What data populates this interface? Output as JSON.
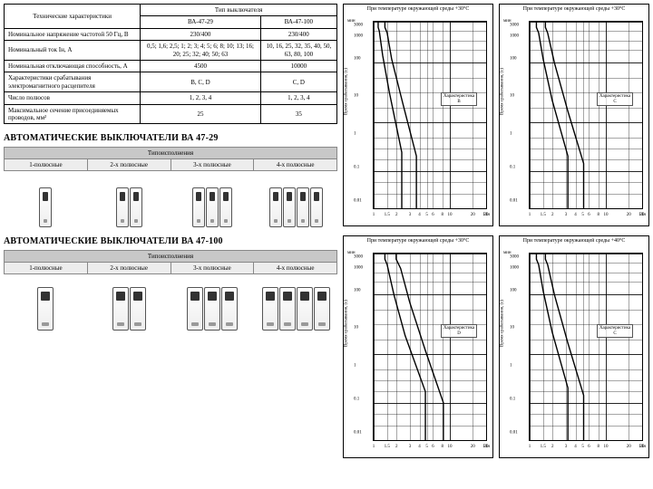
{
  "spec_table": {
    "rowspan_label": "Технические характеристики",
    "type_header": "Тип выключателя",
    "cols": [
      "ВА-47-29",
      "ВА-47-100"
    ],
    "rows": [
      {
        "label": "Номинальное напряжение частотой 50 Гц, В",
        "v": [
          "230/400",
          "230/400"
        ]
      },
      {
        "label": "Номинальный ток Iн, А",
        "v": [
          "0,5; 1,6; 2,5; 1; 2; 3; 4; 5; 6; 8; 10; 13; 16; 20; 25; 32; 40; 50; 63",
          "10, 16, 25, 32, 35, 40, 50, 63, 80, 100"
        ]
      },
      {
        "label": "Номинальная отключающая способность, А",
        "v": [
          "4500",
          "10000"
        ]
      },
      {
        "label": "Характеристики срабатывания электромагнитного расцепителя",
        "v": [
          "B, C, D",
          "C, D"
        ]
      },
      {
        "label": "Число полюсов",
        "v": [
          "1, 2, 3, 4",
          "1, 2, 3, 4"
        ]
      },
      {
        "label": "Максимальное сечение присоединяемых проводов, мм²",
        "v": [
          "25",
          "35"
        ]
      }
    ]
  },
  "sections": [
    {
      "title": "АВТОМАТИЧЕСКИЕ ВЫКЛЮЧАТЕЛИ ВА 47-29",
      "exec_header": "Типоисполнения",
      "variants": [
        "1-полюсные",
        "2-х полюсные",
        "3-х полюсные",
        "4-х полюсные"
      ],
      "poles": [
        1,
        2,
        3,
        4
      ],
      "breaker_style": "std"
    },
    {
      "title": "АВТОМАТИЧЕСКИЕ ВЫКЛЮЧАТЕЛИ ВА 47-100",
      "exec_header": "Типоисполнения",
      "variants": [
        "1-полюсные",
        "2-х полюсные",
        "3-х полюсные",
        "4-х полюсные"
      ],
      "poles": [
        1,
        2,
        3,
        4
      ],
      "breaker_style": "wide"
    }
  ],
  "charts": {
    "x_ticks": [
      1,
      1.5,
      2,
      3,
      4,
      5,
      6,
      8,
      10,
      20,
      30
    ],
    "x_major": [
      1,
      10
    ],
    "y_ticks_top": [
      3000,
      1000,
      500,
      100
    ],
    "y_ticks_min": [
      60,
      40,
      20,
      10,
      6,
      4,
      2,
      1
    ],
    "y_ticks_s": [
      40,
      20,
      10,
      4,
      2,
      1,
      0.4,
      0.2,
      0.1,
      0.04,
      0.02,
      0.01
    ],
    "y_top_label": "мин",
    "y_axis_label": "Время срабатывания, (с)",
    "x_axis_label": "I/Iн",
    "char_label_prefix": "Характеристика",
    "items": [
      {
        "title": "При температуре окружающей среды +30°C",
        "char": "B",
        "curves": [
          [
            [
              4,
              0
            ],
            [
              4,
              3
            ],
            [
              5,
              5
            ],
            [
              8,
              18
            ],
            [
              14,
              38
            ],
            [
              25,
              70
            ],
            [
              25,
              100
            ]
          ],
          [
            [
              10,
              0
            ],
            [
              10,
              3
            ],
            [
              12,
              6
            ],
            [
              16,
              20
            ],
            [
              26,
              44
            ],
            [
              38,
              72
            ],
            [
              38,
              100
            ]
          ]
        ]
      },
      {
        "title": "При температуре окружающей среды +30°C",
        "char": "C",
        "curves": [
          [
            [
              6,
              0
            ],
            [
              6,
              3
            ],
            [
              8,
              6
            ],
            [
              12,
              20
            ],
            [
              20,
              42
            ],
            [
              34,
              72
            ],
            [
              34,
              100
            ]
          ],
          [
            [
              14,
              0
            ],
            [
              14,
              3
            ],
            [
              16,
              6
            ],
            [
              22,
              22
            ],
            [
              34,
              48
            ],
            [
              48,
              76
            ],
            [
              48,
              100
            ]
          ]
        ]
      },
      {
        "title": "При температуре окружающей среды +30°C",
        "char": "D",
        "curves": [
          [
            [
              10,
              0
            ],
            [
              10,
              3
            ],
            [
              12,
              6
            ],
            [
              18,
              22
            ],
            [
              28,
              44
            ],
            [
              46,
              74
            ],
            [
              46,
              100
            ]
          ],
          [
            [
              20,
              0
            ],
            [
              20,
              3
            ],
            [
              24,
              8
            ],
            [
              32,
              26
            ],
            [
              46,
              52
            ],
            [
              62,
              80
            ],
            [
              62,
              100
            ]
          ]
        ]
      },
      {
        "title": "При температуре окружающей среды +40°C",
        "char": "C",
        "curves": [
          [
            [
              6,
              0
            ],
            [
              6,
              3
            ],
            [
              8,
              6
            ],
            [
              12,
              20
            ],
            [
              20,
              42
            ],
            [
              34,
              72
            ],
            [
              34,
              100
            ]
          ],
          [
            [
              14,
              0
            ],
            [
              14,
              3
            ],
            [
              16,
              6
            ],
            [
              22,
              22
            ],
            [
              34,
              48
            ],
            [
              48,
              76
            ],
            [
              48,
              100
            ]
          ]
        ]
      }
    ]
  },
  "style": {
    "grid_color": "#000000",
    "curve_color": "#000000",
    "curve_width": 1.4,
    "bg": "#ffffff"
  }
}
